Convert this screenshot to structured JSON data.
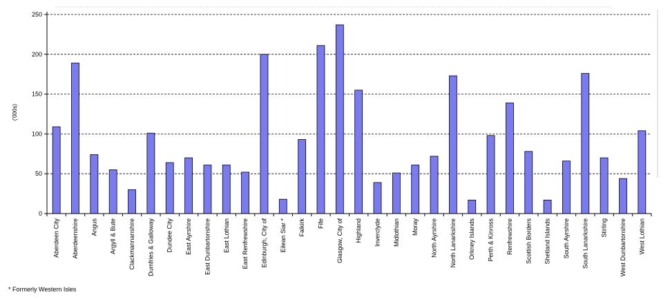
{
  "chart_data": {
    "type": "bar",
    "ylabel": "('000s)",
    "ylim": [
      0,
      250
    ],
    "yticks": [
      0,
      50,
      100,
      150,
      200,
      250
    ],
    "grid": true,
    "bar_color": "#7b7bf0",
    "bar_edge_color": "#000000",
    "categories": [
      "Aberdeen City",
      "Aberdeenshire",
      "Angus",
      "Argyll & Bute",
      "Clackmannanshire",
      "Dumfries & Galloway",
      "Dundee City",
      "East Ayrshire",
      "East Dunbartonshire",
      "East Lothian",
      "East Renfrewshire",
      "Edinburgh, City of",
      "Eilean Siar *",
      "Falkirk",
      "Fife",
      "Glasgow, City of",
      "Highland",
      "Inverclyde",
      "Midlothian",
      "Moray",
      "North Ayrshire",
      "North Lanarkshire",
      "Orkney Islands",
      "Perth & Kinross",
      "Renfrewshire",
      "Scottish Borders",
      "Shetland Islands",
      "South Ayrshire",
      "South Lanarkshire",
      "Stirling",
      "West Dunbartonshire",
      "West Lothian"
    ],
    "values": [
      109,
      189,
      74,
      55,
      30,
      101,
      64,
      70,
      61,
      61,
      52,
      200,
      18,
      93,
      211,
      237,
      155,
      39,
      51,
      61,
      72,
      173,
      17,
      98,
      139,
      78,
      17,
      66,
      176,
      70,
      44,
      104
    ]
  },
  "footnote": "* Formerly Western Isles"
}
